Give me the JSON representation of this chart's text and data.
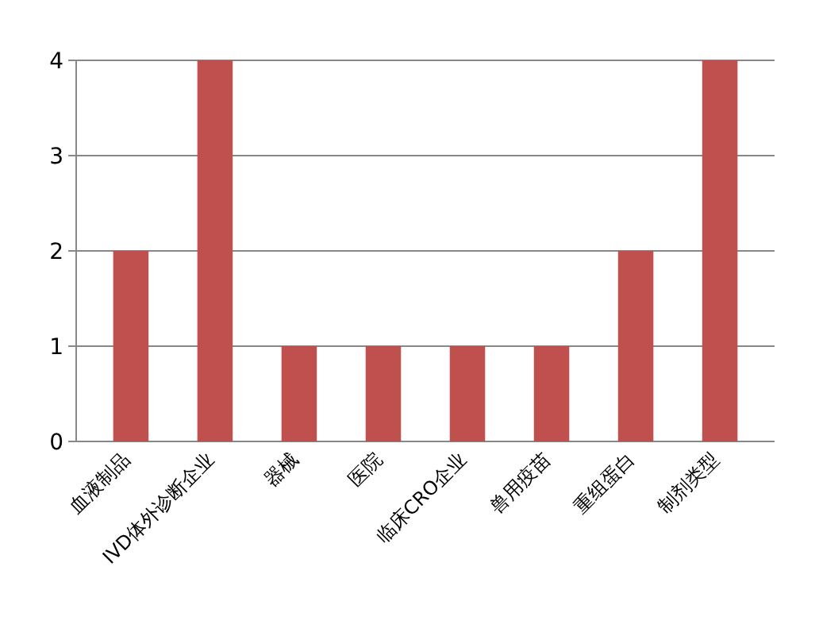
{
  "chart_data": {
    "type": "bar",
    "categories": [
      "血液制品",
      "IVD体外诊断企业",
      "器械",
      "医院",
      "临床CRO企业",
      "兽用疫苗",
      "重组蛋白",
      "制剂类型"
    ],
    "values": [
      2,
      4,
      1,
      1,
      1,
      1,
      2,
      4
    ],
    "color": "#c0504d",
    "ylim": [
      0,
      4
    ],
    "yticks": [
      0,
      1,
      2,
      3,
      4
    ],
    "grid": "y"
  }
}
